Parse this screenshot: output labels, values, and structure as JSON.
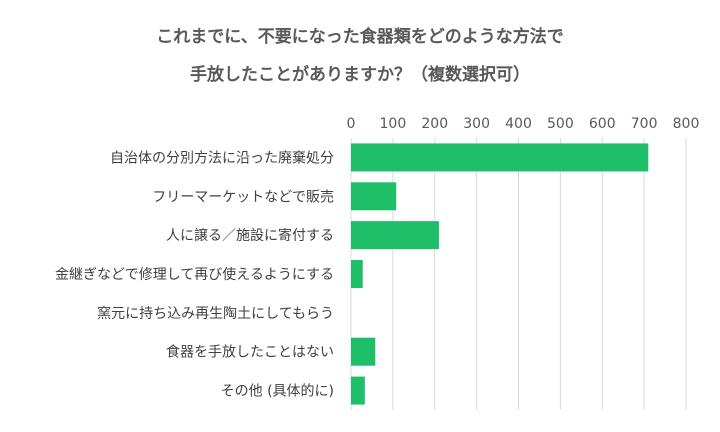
{
  "chart_data": {
    "type": "bar",
    "orientation": "horizontal",
    "title_lines": [
      "これまでに、不要になった食器類をどのような方法で",
      "手放したことがありますか？（複数選択可）"
    ],
    "categories": [
      "自治体の分別方法に沿った廃棄処分",
      "フリーマーケットなどで販売",
      "人に譲る／施設に寄付する",
      "金継ぎなどで修理して再び使えるようにする",
      "窯元に持ち込み再生陶土にしてもらう",
      "食器を手放したことはない",
      "その他 (具体的に)"
    ],
    "values": [
      710,
      108,
      210,
      28,
      0,
      58,
      33
    ],
    "xlim": [
      0,
      800
    ],
    "xticks": [
      "0",
      "100",
      "200",
      "300",
      "400",
      "500",
      "600",
      "700",
      "800"
    ],
    "x_axis_position": "top",
    "grid": true,
    "legend": "none",
    "bar_color": "#1fbf6a",
    "grid_color": "#d9d9d9",
    "text_color": "#404040"
  }
}
